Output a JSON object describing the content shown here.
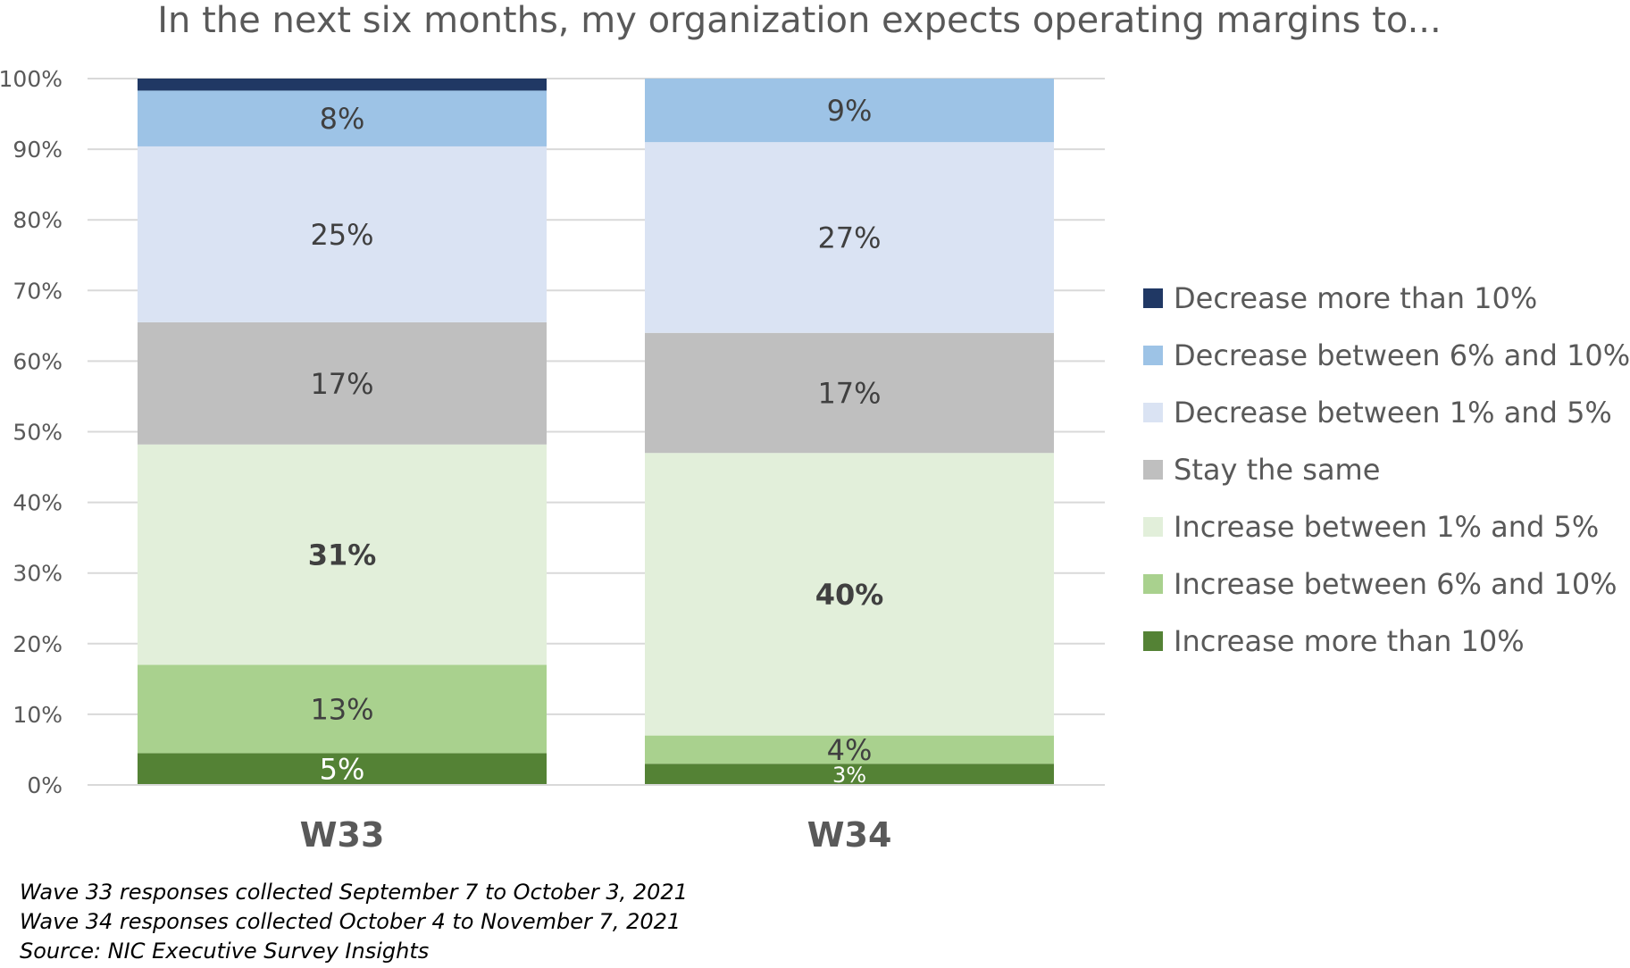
{
  "chart_data": {
    "type": "bar",
    "stacked": true,
    "percent_stacked": true,
    "title": "In the next six months, my organization expects operating margins to...",
    "categories": [
      "W33",
      "W34"
    ],
    "ylim": [
      0,
      100
    ],
    "y_ticks": [
      "0%",
      "10%",
      "20%",
      "30%",
      "40%",
      "50%",
      "60%",
      "70%",
      "80%",
      "90%",
      "100%"
    ],
    "grid": true,
    "legend_position": "right",
    "series": [
      {
        "name": "Increase more than 10%",
        "color": "#548235",
        "values": [
          4.5,
          3
        ],
        "labels": [
          "5%",
          "3%"
        ],
        "label_color": "#ffffff",
        "label_bold": false
      },
      {
        "name": "Increase between 6% and 10%",
        "color": "#a9d18e",
        "values": [
          12.5,
          4
        ],
        "labels": [
          "13%",
          "4%"
        ],
        "label_color": "#404040",
        "label_bold": false
      },
      {
        "name": "Increase between 1% and 5%",
        "color": "#e2efda",
        "values": [
          31.2,
          40
        ],
        "labels": [
          "31%",
          "40%"
        ],
        "label_color": "#404040",
        "label_bold": true
      },
      {
        "name": "Stay the same",
        "color": "#bfbfbf",
        "values": [
          17.3,
          17
        ],
        "labels": [
          "17%",
          "17%"
        ],
        "label_color": "#404040",
        "label_bold": false
      },
      {
        "name": "Decrease between 1% and 5%",
        "color": "#dae3f3",
        "values": [
          24.9,
          27
        ],
        "labels": [
          "25%",
          "27%"
        ],
        "label_color": "#404040",
        "label_bold": false
      },
      {
        "name": "Decrease between 6% and 10%",
        "color": "#9dc3e6",
        "values": [
          7.9,
          9
        ],
        "labels": [
          "8%",
          "9%"
        ],
        "label_color": "#404040",
        "label_bold": false
      },
      {
        "name": "Decrease more than 10%",
        "color": "#203864",
        "values": [
          1.7,
          0
        ],
        "labels": [
          "",
          ""
        ],
        "label_color": "#ffffff",
        "label_bold": false
      }
    ]
  },
  "legend_order": [
    6,
    5,
    4,
    3,
    2,
    1,
    0
  ],
  "footnotes": [
    "Wave 33 responses collected September 7 to October 3, 2021",
    "Wave 34 responses collected October 4 to November 7, 2021",
    "Source: NIC Executive Survey Insights"
  ]
}
